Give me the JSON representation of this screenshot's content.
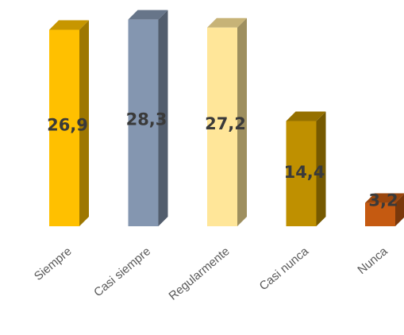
{
  "chart_data": {
    "type": "bar",
    "title": "",
    "xlabel": "",
    "ylabel": "",
    "categories": [
      "Siempre",
      "Casi siempre",
      "Regularmente",
      "Casi nunca",
      "Nunca"
    ],
    "values": [
      26.9,
      28.3,
      27.2,
      14.4,
      3.2
    ],
    "value_labels": [
      "26,9",
      "28,3",
      "27,2",
      "14,4",
      "3,2"
    ],
    "ylim": [
      0,
      30
    ],
    "grid": false,
    "legend": "none",
    "style": "3d-columns",
    "colors": [
      "#FFC000",
      "#8496B0",
      "#FFE699",
      "#BF9000",
      "#C55A11"
    ]
  }
}
